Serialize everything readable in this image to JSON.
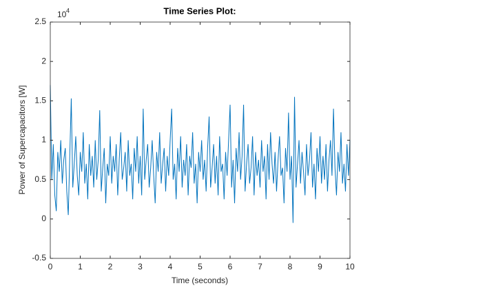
{
  "chart_data": {
    "type": "line",
    "title": "Time Series Plot:",
    "x_label": "Time (seconds)",
    "y_label": "Power of Supercapacitors [W]",
    "y_multiplier": {
      "base": "10",
      "exponent": "4"
    },
    "xlim": [
      0,
      10
    ],
    "xticks": [
      0,
      1,
      2,
      3,
      4,
      5,
      6,
      7,
      8,
      9,
      10
    ],
    "ylim": [
      -0.5,
      2.5
    ],
    "yticks": [
      -0.5,
      0,
      0.5,
      1,
      1.5,
      2,
      2.5
    ],
    "grid": false,
    "x": [
      0,
      0.05,
      0.1,
      0.15,
      0.2,
      0.25,
      0.3,
      0.35,
      0.4,
      0.45,
      0.5,
      0.55,
      0.6,
      0.65,
      0.7,
      0.75,
      0.8,
      0.85,
      0.9,
      0.95,
      1,
      1.05,
      1.1,
      1.15,
      1.2,
      1.25,
      1.3,
      1.35,
      1.4,
      1.45,
      1.5,
      1.55,
      1.6,
      1.65,
      1.7,
      1.75,
      1.8,
      1.85,
      1.9,
      1.95,
      2,
      2.05,
      2.1,
      2.15,
      2.2,
      2.25,
      2.3,
      2.35,
      2.4,
      2.45,
      2.5,
      2.55,
      2.6,
      2.65,
      2.7,
      2.75,
      2.8,
      2.85,
      2.9,
      2.95,
      3,
      3.05,
      3.1,
      3.15,
      3.2,
      3.25,
      3.3,
      3.35,
      3.4,
      3.45,
      3.5,
      3.55,
      3.6,
      3.65,
      3.7,
      3.75,
      3.8,
      3.85,
      3.9,
      3.95,
      4,
      4.05,
      4.1,
      4.15,
      4.2,
      4.25,
      4.3,
      4.35,
      4.4,
      4.45,
      4.5,
      4.55,
      4.6,
      4.65,
      4.7,
      4.75,
      4.8,
      4.85,
      4.9,
      4.95,
      5,
      5.05,
      5.1,
      5.15,
      5.2,
      5.25,
      5.3,
      5.35,
      5.4,
      5.45,
      5.5,
      5.55,
      5.6,
      5.65,
      5.7,
      5.75,
      5.8,
      5.85,
      5.9,
      5.95,
      6,
      6.05,
      6.1,
      6.15,
      6.2,
      6.25,
      6.3,
      6.35,
      6.4,
      6.45,
      6.5,
      6.55,
      6.6,
      6.65,
      6.7,
      6.75,
      6.8,
      6.85,
      6.9,
      6.95,
      7,
      7.05,
      7.1,
      7.15,
      7.2,
      7.25,
      7.3,
      7.35,
      7.4,
      7.45,
      7.5,
      7.55,
      7.6,
      7.65,
      7.7,
      7.75,
      7.8,
      7.85,
      7.9,
      7.95,
      8,
      8.05,
      8.1,
      8.15,
      8.2,
      8.25,
      8.3,
      8.35,
      8.4,
      8.45,
      8.5,
      8.55,
      8.6,
      8.65,
      8.7,
      8.75,
      8.8,
      8.85,
      8.9,
      8.95,
      9,
      9.05,
      9.1,
      9.15,
      9.2,
      9.25,
      9.3,
      9.35,
      9.4,
      9.45,
      9.5,
      9.55,
      9.6,
      9.65,
      9.7,
      9.75,
      9.8,
      9.85,
      9.9,
      9.95,
      10
    ],
    "series": [
      {
        "color": "#0072BD",
        "values": [
          1.7,
          0.5,
          0.95,
          0.3,
          0.1,
          0.85,
          0.6,
          1.0,
          0.45,
          0.75,
          0.9,
          0.35,
          0.05,
          0.8,
          1.53,
          0.4,
          0.7,
          1.05,
          0.55,
          0.3,
          0.85,
          0.6,
          1.1,
          0.45,
          0.7,
          0.25,
          0.95,
          0.55,
          0.8,
          0.4,
          1.0,
          0.5,
          0.75,
          1.38,
          0.35,
          0.65,
          0.9,
          0.2,
          0.7,
          0.55,
          1.05,
          0.45,
          0.8,
          0.6,
          0.95,
          0.3,
          0.75,
          1.1,
          0.5,
          0.65,
          0.85,
          0.35,
          1.0,
          0.55,
          0.7,
          0.25,
          0.9,
          0.6,
          1.05,
          0.45,
          0.8,
          0.3,
          1.4,
          0.5,
          0.75,
          0.95,
          0.4,
          0.65,
          1.0,
          0.55,
          0.2,
          0.85,
          0.6,
          1.1,
          0.45,
          0.7,
          0.9,
          0.35,
          0.8,
          0.55,
          1.0,
          1.4,
          0.5,
          0.7,
          0.25,
          0.9,
          0.6,
          1.05,
          0.4,
          0.75,
          0.55,
          0.95,
          0.3,
          0.8,
          0.65,
          1.1,
          0.45,
          0.7,
          0.2,
          0.85,
          0.6,
          1.0,
          0.5,
          0.75,
          0.35,
          0.9,
          1.3,
          0.4,
          0.65,
          0.95,
          0.45,
          0.8,
          0.3,
          1.05,
          0.6,
          0.7,
          0.25,
          0.85,
          0.55,
          1.0,
          1.45,
          0.4,
          0.75,
          0.2,
          0.9,
          0.6,
          1.1,
          0.5,
          0.8,
          1.45,
          0.35,
          0.7,
          0.95,
          0.45,
          0.65,
          1.05,
          0.3,
          0.85,
          0.55,
          0.75,
          0.4,
          1.0,
          0.6,
          0.8,
          0.25,
          0.95,
          0.5,
          1.1,
          0.7,
          0.45,
          0.85,
          0.35,
          0.75,
          1.05,
          0.55,
          0.65,
          0.2,
          0.9,
          0.6,
          1.35,
          0.5,
          0.8,
          -0.05,
          1.55,
          0.4,
          0.7,
          1.0,
          0.45,
          0.85,
          0.6,
          0.3,
          0.95,
          0.55,
          0.75,
          1.1,
          0.4,
          0.7,
          0.25,
          0.9,
          0.6,
          1.05,
          0.45,
          0.8,
          0.5,
          0.95,
          0.35,
          0.75,
          1.0,
          0.55,
          1.4,
          0.65,
          0.3,
          0.85,
          0.6,
          1.1,
          0.45,
          0.7,
          0.35,
          0.95,
          0.55,
          1.0
        ]
      }
    ]
  }
}
